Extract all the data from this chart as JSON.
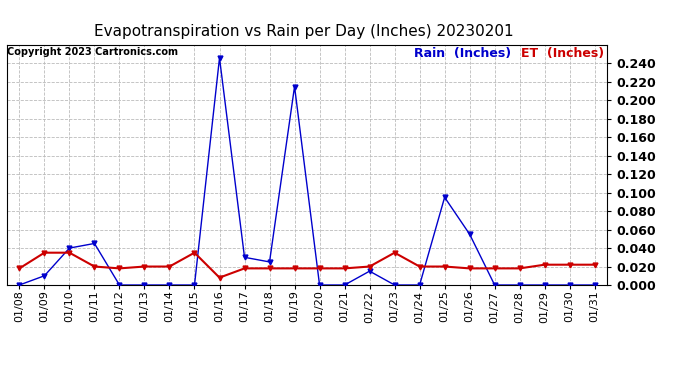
{
  "title": "Evapotranspiration vs Rain per Day (Inches) 20230201",
  "copyright": "Copyright 2023 Cartronics.com",
  "legend_rain": "Rain  (Inches)",
  "legend_et": "ET  (Inches)",
  "x_labels": [
    "01/08",
    "01/09",
    "01/10",
    "01/11",
    "01/12",
    "01/13",
    "01/14",
    "01/15",
    "01/16",
    "01/17",
    "01/18",
    "01/19",
    "01/20",
    "01/21",
    "01/22",
    "01/23",
    "01/24",
    "01/25",
    "01/26",
    "01/27",
    "01/28",
    "01/29",
    "01/30",
    "01/31"
  ],
  "rain_values": [
    0.0,
    0.01,
    0.04,
    0.045,
    0.0,
    0.0,
    0.0,
    0.0,
    0.246,
    0.03,
    0.025,
    0.215,
    0.0,
    0.0,
    0.015,
    0.0,
    0.0,
    0.095,
    0.055,
    0.0,
    0.0,
    0.0,
    0.0,
    0.0
  ],
  "et_values": [
    0.018,
    0.035,
    0.035,
    0.02,
    0.018,
    0.02,
    0.02,
    0.035,
    0.008,
    0.018,
    0.018,
    0.018,
    0.018,
    0.018,
    0.02,
    0.035,
    0.02,
    0.02,
    0.018,
    0.018,
    0.018,
    0.022,
    0.022,
    0.022
  ],
  "rain_color": "#0000cc",
  "et_color": "#cc0000",
  "ylim": [
    0,
    0.26
  ],
  "yticks": [
    0.0,
    0.02,
    0.04,
    0.06,
    0.08,
    0.1,
    0.12,
    0.14,
    0.16,
    0.18,
    0.2,
    0.22,
    0.24
  ],
  "background_color": "#ffffff",
  "grid_color": "#bbbbbb",
  "title_fontsize": 11,
  "axis_fontsize": 8,
  "tick_fontsize": 9,
  "copyright_fontsize": 7,
  "legend_fontsize": 9
}
